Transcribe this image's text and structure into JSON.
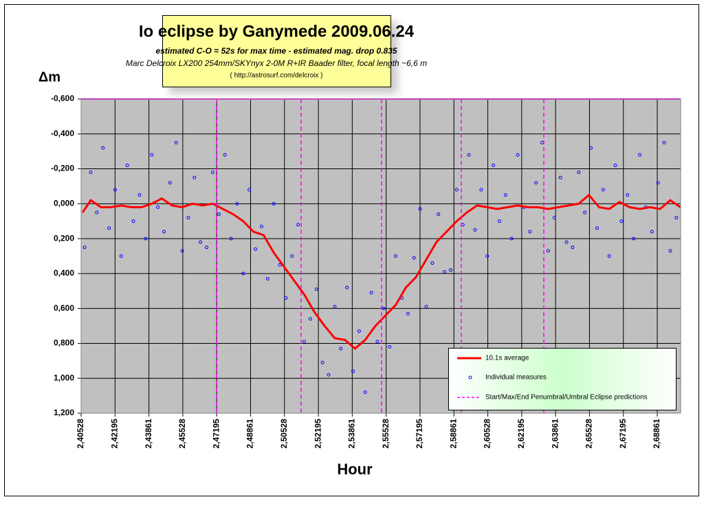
{
  "chart_data": {
    "type": "scatter",
    "title": "Io eclipse by Ganymede 2009.06.24",
    "subtitle": [
      "estimated C-O = 52s for max time - estimated mag. drop 0.835",
      "Marc Delcroix LX200 254mm/SKYnyx 2-0M  R+IR Baader filter, focal length ~6,6 m",
      "( http://astrosurf.com/delcroix )"
    ],
    "ylabel": "Δm",
    "xlabel": "Hour",
    "xlim": [
      2.40528,
      2.7001
    ],
    "ylim": [
      -0.6,
      1.2
    ],
    "y_inverted": true,
    "grid": true,
    "legend": "lower right",
    "xticks": [
      {
        "value": 2.40528,
        "label": "2,40528"
      },
      {
        "value": 2.42195,
        "label": "2,42195"
      },
      {
        "value": 2.43861,
        "label": "2,43861"
      },
      {
        "value": 2.45528,
        "label": "2,45528"
      },
      {
        "value": 2.47195,
        "label": "2,47195"
      },
      {
        "value": 2.48861,
        "label": "2,48861"
      },
      {
        "value": 2.50528,
        "label": "2,50528"
      },
      {
        "value": 2.52195,
        "label": "2,52195"
      },
      {
        "value": 2.53861,
        "label": "2,53861"
      },
      {
        "value": 2.55528,
        "label": "2,55528"
      },
      {
        "value": 2.57195,
        "label": "2,57195"
      },
      {
        "value": 2.58861,
        "label": "2,58861"
      },
      {
        "value": 2.60528,
        "label": "2,60528"
      },
      {
        "value": 2.62195,
        "label": "2,62195"
      },
      {
        "value": 2.63861,
        "label": "2,63861"
      },
      {
        "value": 2.65528,
        "label": "2,65528"
      },
      {
        "value": 2.67195,
        "label": "2,67195"
      },
      {
        "value": 2.68861,
        "label": "2,68861"
      }
    ],
    "yticks": [
      {
        "value": -0.6,
        "label": "-0,600"
      },
      {
        "value": -0.4,
        "label": "-0,400"
      },
      {
        "value": -0.2,
        "label": "-0,200"
      },
      {
        "value": 0,
        "label": "0,000"
      },
      {
        "value": 0.2,
        "label": "0,200"
      },
      {
        "value": 0.4,
        "label": "0,400"
      },
      {
        "value": 0.6,
        "label": "0,600"
      },
      {
        "value": 0.8,
        "label": "0,800"
      },
      {
        "value": 1.0,
        "label": "1,000"
      },
      {
        "value": 1.2,
        "label": "1,200"
      }
    ],
    "series": [
      {
        "name": "10.1s average",
        "type": "line",
        "color": "#ff0000",
        "x": [
          2.406,
          2.41,
          2.415,
          2.42,
          2.425,
          2.43,
          2.435,
          2.44,
          2.445,
          2.45,
          2.455,
          2.46,
          2.465,
          2.47,
          2.475,
          2.48,
          2.485,
          2.49,
          2.495,
          2.5,
          2.505,
          2.51,
          2.515,
          2.52,
          2.525,
          2.53,
          2.535,
          2.54,
          2.545,
          2.55,
          2.555,
          2.56,
          2.565,
          2.57,
          2.575,
          2.58,
          2.585,
          2.59,
          2.595,
          2.6,
          2.605,
          2.61,
          2.615,
          2.62,
          2.625,
          2.63,
          2.635,
          2.64,
          2.645,
          2.65,
          2.655,
          2.66,
          2.665,
          2.67,
          2.675,
          2.68,
          2.685,
          2.69,
          2.695,
          2.7
        ],
        "values": [
          0.05,
          -0.02,
          0.02,
          0.02,
          0.01,
          0.02,
          0.02,
          0,
          -0.03,
          0.01,
          0.02,
          0,
          0.01,
          0,
          0.03,
          0.06,
          0.1,
          0.16,
          0.18,
          0.28,
          0.36,
          0.44,
          0.52,
          0.62,
          0.7,
          0.77,
          0.78,
          0.83,
          0.78,
          0.7,
          0.64,
          0.58,
          0.48,
          0.42,
          0.32,
          0.22,
          0.16,
          0.1,
          0.05,
          0.01,
          0.02,
          0.03,
          0.02,
          0.01,
          0.02,
          0.02,
          0.03,
          0.02,
          0.01,
          0,
          -0.05,
          0.02,
          0.03,
          -0.01,
          0.02,
          0.03,
          0.02,
          0.03,
          -0.02,
          0.02
        ]
      },
      {
        "name": "Individual measures",
        "type": "scatter",
        "color": "#0000ff",
        "x": [
          2.407,
          2.41,
          2.413,
          2.416,
          2.419,
          2.422,
          2.425,
          2.428,
          2.431,
          2.434,
          2.437,
          2.44,
          2.443,
          2.446,
          2.449,
          2.452,
          2.455,
          2.458,
          2.461,
          2.464,
          2.467,
          2.47,
          2.473,
          2.476,
          2.479,
          2.482,
          2.485,
          2.488,
          2.491,
          2.494,
          2.497,
          2.5,
          2.503,
          2.506,
          2.509,
          2.512,
          2.515,
          2.518,
          2.521,
          2.524,
          2.527,
          2.53,
          2.533,
          2.536,
          2.539,
          2.542,
          2.545,
          2.548,
          2.551,
          2.554,
          2.557,
          2.56,
          2.563,
          2.566,
          2.569,
          2.572,
          2.575,
          2.578,
          2.581,
          2.584,
          2.587,
          2.59,
          2.593,
          2.596,
          2.599,
          2.602,
          2.605,
          2.608,
          2.611,
          2.614,
          2.617,
          2.62,
          2.623,
          2.626,
          2.629,
          2.632,
          2.635,
          2.638,
          2.641,
          2.644,
          2.647,
          2.65,
          2.653,
          2.656,
          2.659,
          2.662,
          2.665,
          2.668,
          2.671,
          2.674,
          2.677,
          2.68,
          2.683,
          2.686,
          2.689,
          2.692,
          2.695,
          2.698
        ],
        "values": [
          0.25,
          -0.18,
          0.05,
          -0.32,
          0.14,
          -0.08,
          0.3,
          -0.22,
          0.1,
          -0.05,
          0.2,
          -0.28,
          0.02,
          0.16,
          -0.12,
          -0.35,
          0.27,
          0.08,
          -0.15,
          0.22,
          0.25,
          -0.18,
          0.06,
          -0.28,
          0.2,
          0,
          0.4,
          -0.08,
          0.26,
          0.13,
          0.43,
          0,
          0.35,
          0.54,
          0.3,
          0.12,
          0.79,
          0.66,
          0.49,
          0.91,
          0.98,
          0.59,
          0.83,
          0.48,
          0.96,
          0.73,
          1.08,
          0.51,
          0.79,
          0.6,
          0.82,
          0.3,
          0.54,
          0.63,
          0.31,
          0.03,
          0.59,
          0.34,
          0.06,
          0.39,
          0.38,
          -0.08,
          0.12,
          -0.28,
          0.15,
          -0.08,
          0.3,
          -0.22,
          0.1,
          -0.05,
          0.2,
          -0.28,
          0.02,
          0.16,
          -0.12,
          -0.35,
          0.27,
          0.08,
          -0.15,
          0.22,
          0.25,
          -0.18,
          0.05,
          -0.32,
          0.14,
          -0.08,
          0.3,
          -0.22,
          0.1,
          -0.05,
          0.2,
          -0.28,
          0.02,
          0.16,
          -0.12,
          -0.35,
          0.27,
          0.08
        ]
      },
      {
        "name": "Start/Max/End Penumbral/Umbral Eclipse predictions",
        "type": "vlines",
        "color": "#ff00ff",
        "x": [
          2.47189,
          2.51347,
          2.55303,
          2.59225,
          2.63282
        ]
      }
    ]
  }
}
